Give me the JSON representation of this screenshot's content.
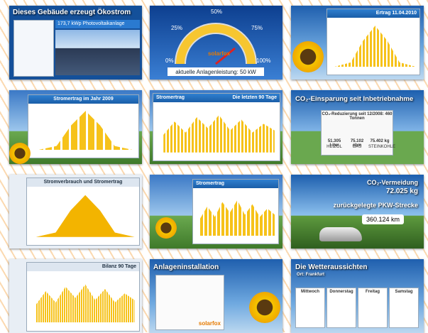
{
  "tiles": [
    {
      "title": "Dieses Gebäude erzeugt Ökostrom",
      "subtitle": "173,7 kWp Photovoltaikanlage"
    },
    {
      "gauge_labels": [
        "0%",
        "25%",
        "50%",
        "75%",
        "100%"
      ],
      "brand": "solarfox",
      "caption": "aktuelle Anlagenleistung: 50 kW"
    },
    {
      "title": "Ertrag 11.04.2010"
    },
    {
      "title": "Stromertrag im Jahr 2009"
    },
    {
      "title": "Stromertrag",
      "subtitle": "Die letzten 90 Tage"
    },
    {
      "title": "CO₂-Einsparung seit Inbetriebnahme",
      "subtitle": "CO₂-Reduzierung seit 12/2008:  460 Tonnen",
      "items": [
        {
          "value": "51.305 Liter",
          "label": "HEIZÖL"
        },
        {
          "value": "75.102 cbm",
          "label": "GAS"
        },
        {
          "value": "75.402 kg",
          "label": "STEINKOHLE"
        }
      ]
    },
    {
      "title": "Stromverbrauch und Stromertrag"
    },
    {
      "title": "Stromertrag"
    },
    {
      "title": "CO₂-Vermeidung",
      "value": "72.025 kg",
      "subtitle": "zurückgelegte PKW-Strecke",
      "distance": "360.124 km"
    },
    {
      "title": "Bilanz 90 Tage"
    },
    {
      "title": "Anlageninstallation",
      "brand": "solarfox"
    },
    {
      "title": "Die Wetteraussichten",
      "subtitle": "Ort: Frankfurt",
      "days": [
        "Mittwoch",
        "Donnerstag",
        "Freitag",
        "Samstag"
      ]
    }
  ]
}
